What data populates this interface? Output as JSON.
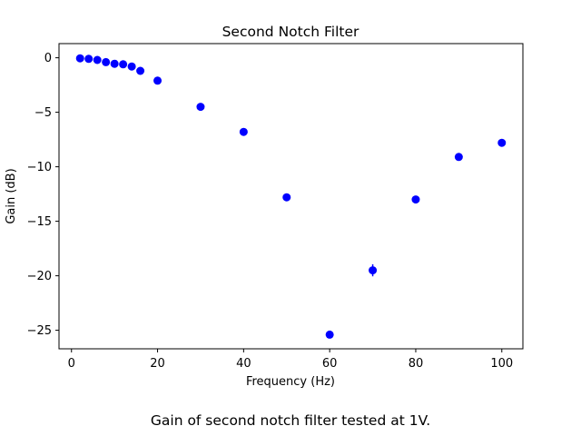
{
  "chart_data": {
    "type": "scatter",
    "title": "Second Notch Filter",
    "xlabel": "Frequency (Hz)",
    "ylabel": "Gain (dB)",
    "xlim": [
      -2.9,
      104.9
    ],
    "ylim": [
      -26.7,
      1.3
    ],
    "xticks": [
      0,
      20,
      40,
      60,
      80,
      100
    ],
    "xtick_labels": [
      "0",
      "20",
      "40",
      "60",
      "80",
      "100"
    ],
    "yticks": [
      0,
      -5,
      -10,
      -15,
      -20,
      -25
    ],
    "ytick_labels": [
      "0",
      "−5",
      "−10",
      "−15",
      "−20",
      "−25"
    ],
    "grid": false,
    "marker_color": "#0000ff",
    "points": [
      {
        "x": 2,
        "y": -0.05,
        "yerr": 0.1
      },
      {
        "x": 4,
        "y": -0.1,
        "yerr": 0.1
      },
      {
        "x": 6,
        "y": -0.2,
        "yerr": 0.1
      },
      {
        "x": 8,
        "y": -0.4,
        "yerr": 0.1
      },
      {
        "x": 10,
        "y": -0.55,
        "yerr": 0.1
      },
      {
        "x": 12,
        "y": -0.6,
        "yerr": 0.1
      },
      {
        "x": 14,
        "y": -0.8,
        "yerr": 0.1
      },
      {
        "x": 16,
        "y": -1.2,
        "yerr": 0.1
      },
      {
        "x": 20,
        "y": -2.1,
        "yerr": 0.15
      },
      {
        "x": 30,
        "y": -4.5,
        "yerr": 0.3
      },
      {
        "x": 40,
        "y": -6.8,
        "yerr": 0.35
      },
      {
        "x": 50,
        "y": -12.8,
        "yerr": 0.2
      },
      {
        "x": 60,
        "y": -25.4,
        "yerr": 0.2
      },
      {
        "x": 70,
        "y": -19.5,
        "yerr": 0.55
      },
      {
        "x": 80,
        "y": -13.0,
        "yerr": 0.2
      },
      {
        "x": 90,
        "y": -9.1,
        "yerr": 0.2
      },
      {
        "x": 100,
        "y": -7.8,
        "yerr": 0.2
      }
    ]
  },
  "caption": "Gain of second notch filter tested at 1V."
}
